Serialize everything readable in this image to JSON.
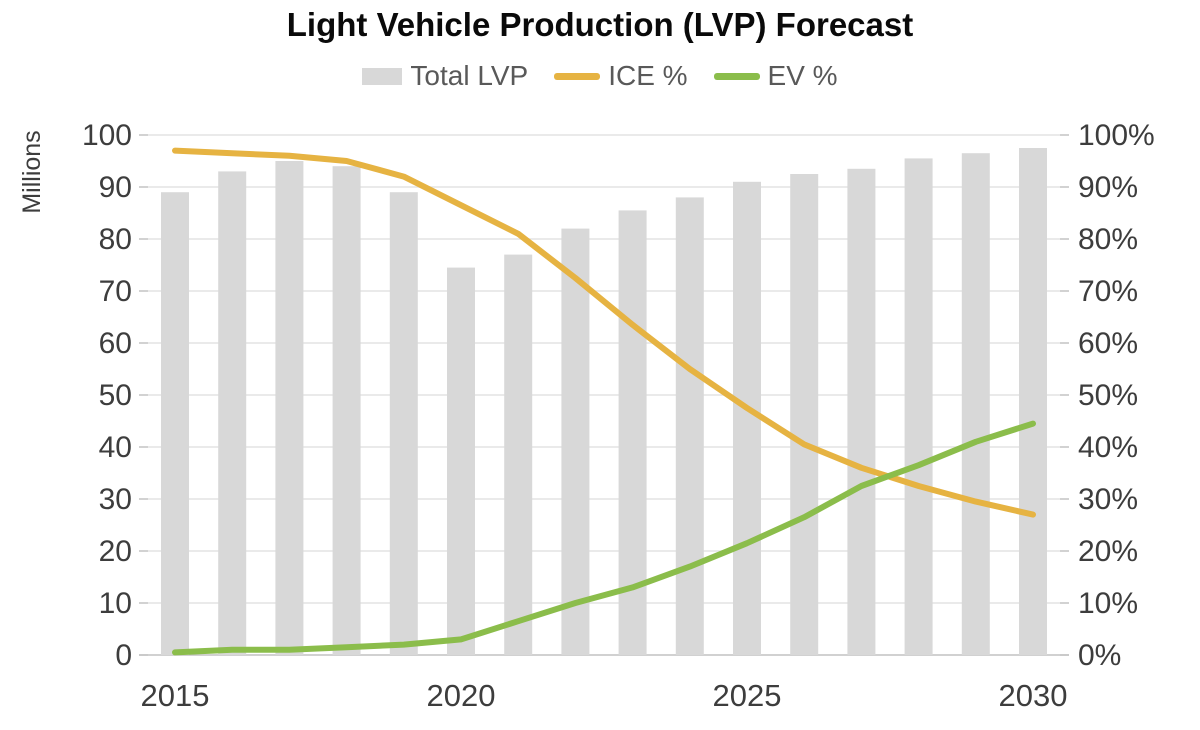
{
  "chart_data": {
    "type": "combo",
    "title": "Light Vehicle Production (LVP) Forecast",
    "categories": [
      2015,
      2016,
      2017,
      2018,
      2019,
      2020,
      2021,
      2022,
      2023,
      2024,
      2025,
      2026,
      2027,
      2028,
      2029,
      2030
    ],
    "series": [
      {
        "name": "Total LVP",
        "type": "bar",
        "axis": "left",
        "color": "#d8d8d8",
        "values": [
          89,
          93,
          95,
          94,
          89,
          74.5,
          77,
          82,
          85.5,
          88,
          91,
          92.5,
          93.5,
          95.5,
          96.5,
          97.5
        ]
      },
      {
        "name": "ICE %",
        "type": "line",
        "axis": "right",
        "color": "#e6b342",
        "values": [
          97,
          96.5,
          96,
          95,
          92,
          86.5,
          81,
          72.5,
          63.5,
          55,
          47.5,
          40.5,
          36,
          32.5,
          29.5,
          27
        ]
      },
      {
        "name": "EV %",
        "type": "line",
        "axis": "right",
        "color": "#8bbd4b",
        "values": [
          0.5,
          1,
          1,
          1.5,
          2,
          3,
          6.5,
          10,
          13,
          17,
          21.5,
          26.5,
          32.5,
          36.5,
          41,
          44.5
        ]
      }
    ],
    "left_axis": {
      "label": "Millions",
      "min": 0,
      "max": 100,
      "step": 10,
      "tick_labels": [
        "0",
        "10",
        "20",
        "30",
        "40",
        "50",
        "60",
        "70",
        "80",
        "90",
        "100"
      ]
    },
    "right_axis": {
      "min": 0,
      "max": 100,
      "step": 10,
      "tick_labels": [
        "0%",
        "10%",
        "20%",
        "30%",
        "40%",
        "50%",
        "60%",
        "70%",
        "80%",
        "90%",
        "100%"
      ]
    },
    "x_axis": {
      "shown_tick_labels": [
        "2015",
        "2020",
        "2025",
        "2030"
      ]
    },
    "legend": {
      "position": "top",
      "entries": [
        "Total LVP",
        "ICE %",
        "EV %"
      ]
    },
    "grid": "horizontal",
    "ylim_left": [
      0,
      100
    ],
    "ylim_right": [
      0,
      100
    ]
  }
}
